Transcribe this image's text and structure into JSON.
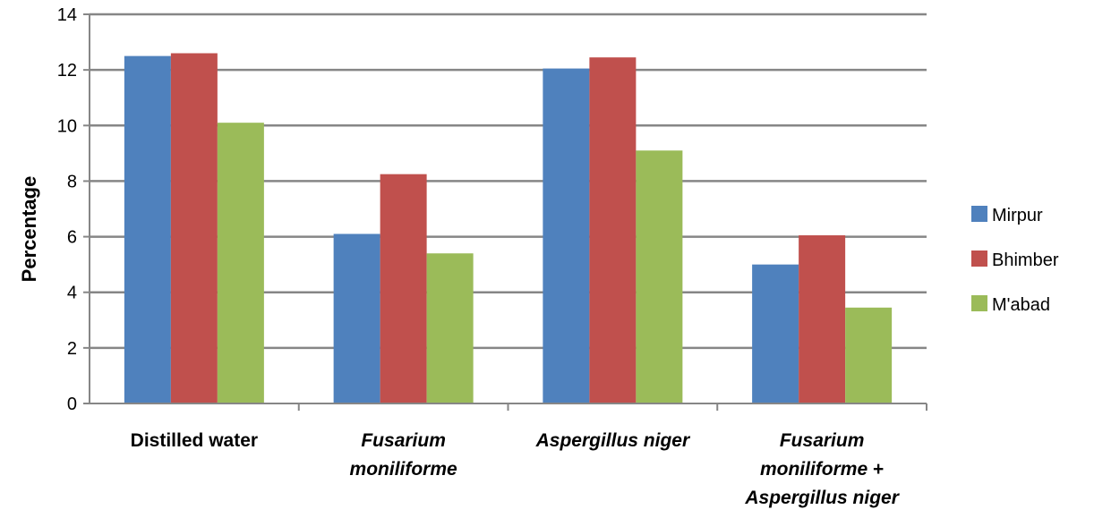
{
  "chart_data": {
    "type": "bar",
    "title": "",
    "xlabel": "",
    "ylabel": "Percentage",
    "ylim": [
      0,
      14
    ],
    "yticks": [
      0,
      2,
      4,
      6,
      8,
      10,
      12,
      14
    ],
    "grid": true,
    "legend_position": "right",
    "categories": [
      {
        "lines": [
          {
            "parts": [
              {
                "text": "Distilled water",
                "italic": false
              }
            ]
          }
        ]
      },
      {
        "lines": [
          {
            "parts": [
              {
                "text": "Fusarium",
                "italic": true
              }
            ]
          },
          {
            "parts": [
              {
                "text": "moniliforme",
                "italic": true
              }
            ]
          }
        ]
      },
      {
        "lines": [
          {
            "parts": [
              {
                "text": "Aspergillus niger",
                "italic": true
              }
            ]
          }
        ]
      },
      {
        "lines": [
          {
            "parts": [
              {
                "text": "Fusarium",
                "italic": true
              }
            ]
          },
          {
            "parts": [
              {
                "text": "moniliforme",
                "italic": true
              },
              {
                "text": " +",
                "italic": false
              }
            ]
          },
          {
            "parts": [
              {
                "text": "Aspergillus niger",
                "italic": true
              }
            ]
          }
        ]
      }
    ],
    "series": [
      {
        "name": "Mirpur",
        "color": "#4F81BD",
        "values": [
          12.5,
          6.1,
          12.05,
          5.0
        ]
      },
      {
        "name": "Bhimber",
        "color": "#C0504D",
        "values": [
          12.6,
          8.25,
          12.45,
          6.05
        ]
      },
      {
        "name": "M'abad",
        "color": "#9BBB59",
        "values": [
          10.1,
          5.4,
          9.1,
          3.45
        ]
      }
    ]
  }
}
